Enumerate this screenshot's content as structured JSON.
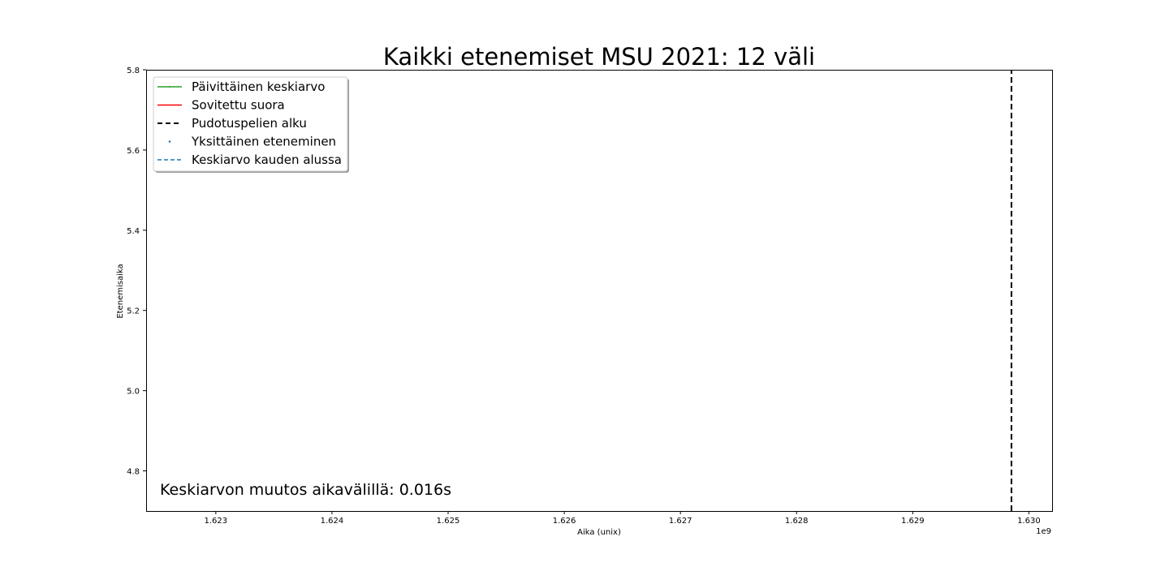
{
  "chart_data": {
    "type": "line",
    "title": "Kaikki etenemiset MSU 2021: 12 väli",
    "xlabel": "Aika (unix)",
    "ylabel": "Etenemisaika",
    "x_offset_label": "1e9",
    "xlim": [
      1622400000,
      1630200000
    ],
    "ylim": [
      4.7,
      5.8
    ],
    "x_ticks": [
      1623000000,
      1624000000,
      1625000000,
      1626000000,
      1627000000,
      1628000000,
      1629000000,
      1630000000
    ],
    "x_tick_labels": [
      "1.623",
      "1.624",
      "1.625",
      "1.626",
      "1.627",
      "1.628",
      "1.629",
      "1.630"
    ],
    "y_ticks": [
      4.8,
      5.0,
      5.2,
      5.4,
      5.6,
      5.8
    ],
    "y_tick_labels": [
      "4.8",
      "5.0",
      "5.2",
      "5.4",
      "5.6",
      "5.8"
    ],
    "grid": false,
    "legend_position": "top-left",
    "series": [
      {
        "name": "Päivittäinen keskiarvo",
        "color": "#2ca02c",
        "style": "solid-marker",
        "x": [],
        "y": []
      },
      {
        "name": "Sovitettu suora",
        "color": "#ff0000",
        "style": "solid",
        "x": [],
        "y": []
      },
      {
        "name": "Pudotuspelien alku",
        "color": "#000000",
        "style": "dashed",
        "x": [
          1629850000,
          1629850000
        ],
        "y": [
          4.7,
          5.8
        ]
      },
      {
        "name": "Yksittäinen eteneminen",
        "color": "#1f77b4",
        "style": "points",
        "x": [],
        "y": []
      },
      {
        "name": "Keskiarvo kauden alussa",
        "color": "#1f77b4",
        "style": "dashed",
        "x": [],
        "y": []
      }
    ],
    "annotation": "Keskiarvon muutos aikavälillä: 0.016s"
  }
}
